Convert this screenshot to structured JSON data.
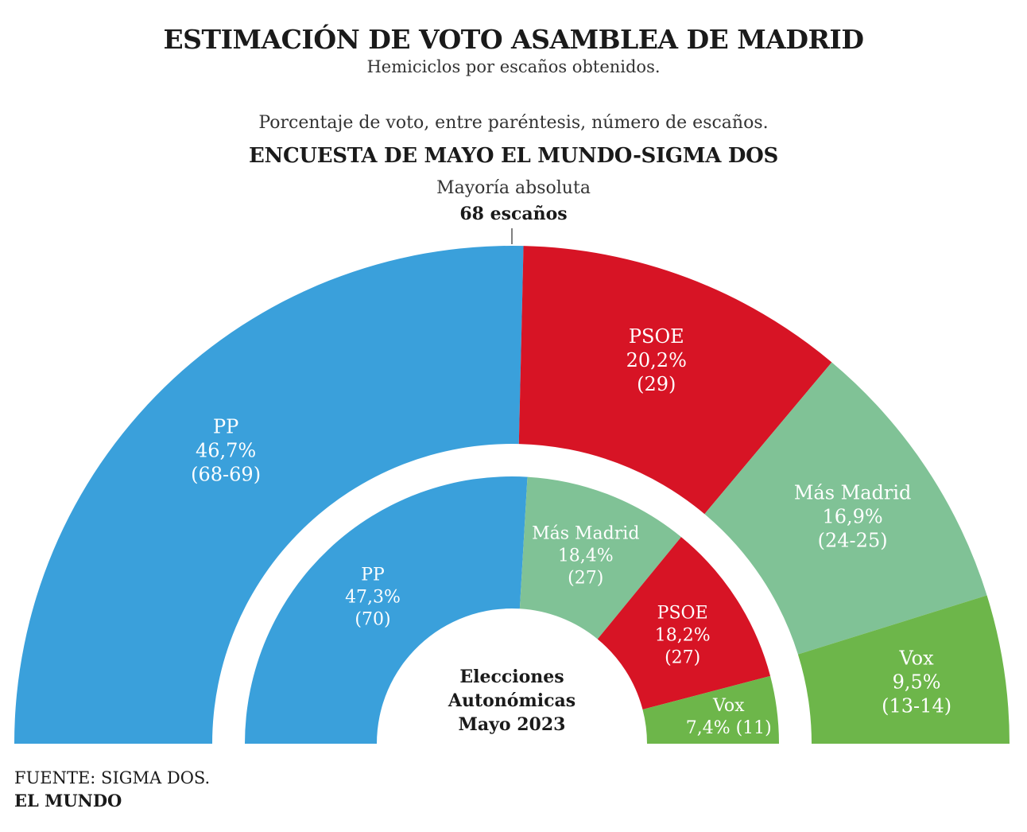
{
  "title": "ESTIMACIÓN DE VOTO ASAMBLEA DE MADRID",
  "subtitle": "Hemiciclos por escaños obtenidos.",
  "note": "Porcentaje de voto, entre paréntesis, número de escaños.",
  "survey_title": "ENCUESTA DE MAYO EL MUNDO-SIGMA DOS",
  "majority_label": "Mayoría absoluta",
  "majority_seats": "68 escaños",
  "center_label": [
    "Elecciones",
    "Autonómicas",
    "Mayo 2023"
  ],
  "source": "FUENTE: SIGMA DOS.",
  "brand": "EL MUNDO",
  "colors": {
    "PP": "#3aa0db",
    "PSOE": "#d71425",
    "Más Madrid": "#80c296",
    "Vox": "#6db64a"
  },
  "chart_data": [
    {
      "type": "semicircle-donut",
      "title": "ENCUESTA DE MAYO EL MUNDO-SIGMA DOS",
      "total_seats": 135,
      "majority": 68,
      "series": [
        {
          "name": "PP",
          "percent": "46,7%",
          "seats": "(68-69)",
          "seat_value": 68.5
        },
        {
          "name": "PSOE",
          "percent": "20,2%",
          "seats": "(29)",
          "seat_value": 29
        },
        {
          "name": "Más Madrid",
          "percent": "16,9%",
          "seats": "(24-25)",
          "seat_value": 24.5
        },
        {
          "name": "Vox",
          "percent": "9,5%",
          "seats": "(13-14)",
          "seat_value": 13
        }
      ]
    },
    {
      "type": "semicircle-donut",
      "title": "Elecciones Autonómicas Mayo 2023",
      "total_seats": 135,
      "series": [
        {
          "name": "PP",
          "percent": "47,3%",
          "seats": "(70)",
          "seat_value": 70
        },
        {
          "name": "Más Madrid",
          "percent": "18,4%",
          "seats": "(27)",
          "seat_value": 27
        },
        {
          "name": "PSOE",
          "percent": "18,2%",
          "seats": "(27)",
          "seat_value": 27
        },
        {
          "name": "Vox",
          "percent": "7,4%",
          "seats": "(11)",
          "seat_value": 11
        }
      ]
    }
  ]
}
